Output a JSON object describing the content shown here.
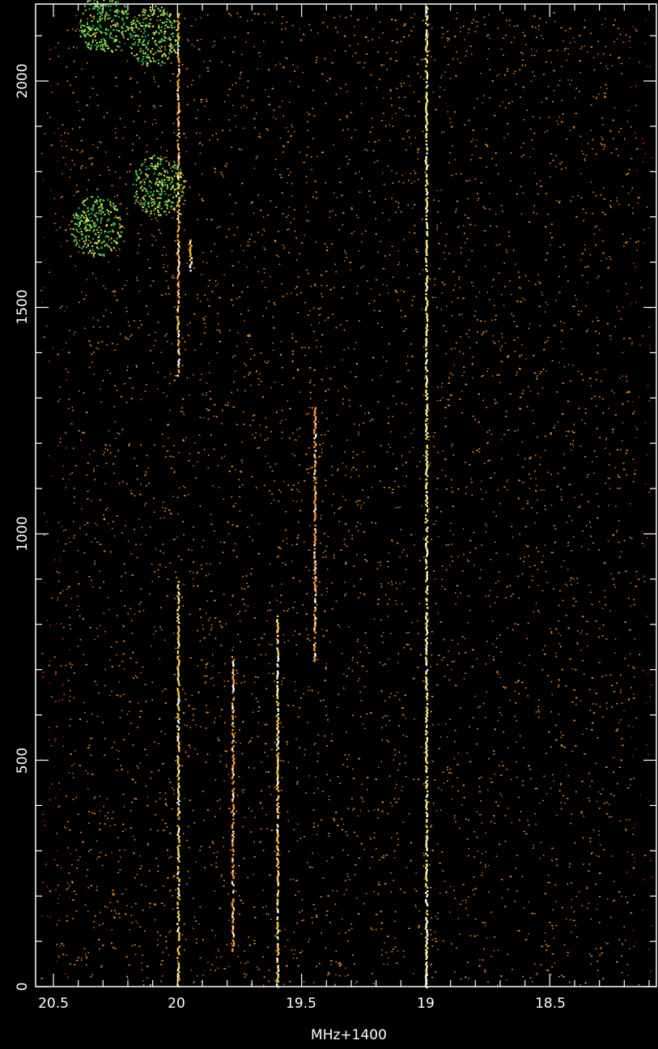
{
  "chart_data": {
    "type": "scatter",
    "title": "",
    "xlabel": "MHz+1400",
    "ylabel": "",
    "xlim": [
      20.55,
      18.05
    ],
    "ylim": [
      0,
      2165
    ],
    "x_ticks": [
      20.5,
      20,
      19.5,
      19,
      18.5
    ],
    "x_tick_labels": [
      "20.5",
      "20",
      "19.5",
      "19",
      "18.5"
    ],
    "y_ticks": [
      0,
      500,
      1000,
      1500,
      2000
    ],
    "y_tick_labels": [
      "0",
      "500",
      "1000",
      "1500",
      "2000"
    ],
    "grid": false,
    "background_noise": {
      "description_note": "",
      "x_range": [
        20.55,
        18.05
      ],
      "y_range": [
        0,
        2165
      ],
      "color": "#e8822a",
      "edge_color": "#c41a1a"
    },
    "series": [
      {
        "x": 20.0,
        "y_start": 0,
        "y_end": 900,
        "color": "#ffcc33"
      },
      {
        "x": 20.0,
        "y_start": 1350,
        "y_end": 2150,
        "color": "#ffb030"
      },
      {
        "x": 19.95,
        "y_start": 1580,
        "y_end": 1650,
        "color": "#ffb030"
      },
      {
        "x": 19.78,
        "y_start": 80,
        "y_end": 730,
        "color": "#ff9a30"
      },
      {
        "x": 19.6,
        "y_start": 0,
        "y_end": 820,
        "color": "#ffcc33"
      },
      {
        "x": 19.45,
        "y_start": 720,
        "y_end": 1280,
        "color": "#ff9a30"
      },
      {
        "x": 19.0,
        "y_start": 0,
        "y_end": 2165,
        "color": "#ffee66"
      }
    ],
    "clusters": [
      {
        "x": 20.3,
        "y": 2130,
        "color": "#7de84a"
      },
      {
        "x": 20.33,
        "y": 1680,
        "color": "#9ee84a"
      },
      {
        "x": 20.08,
        "y": 1770,
        "color": "#b8e84a"
      },
      {
        "x": 20.1,
        "y": 2100,
        "color": "#b8e84a"
      }
    ],
    "colors": {
      "background": "#000000",
      "axis": "#ffffff",
      "noise": "#e8822a",
      "edge": "#c41a1a",
      "signal": "#ffcc33",
      "cluster": "#8ee84a"
    }
  }
}
